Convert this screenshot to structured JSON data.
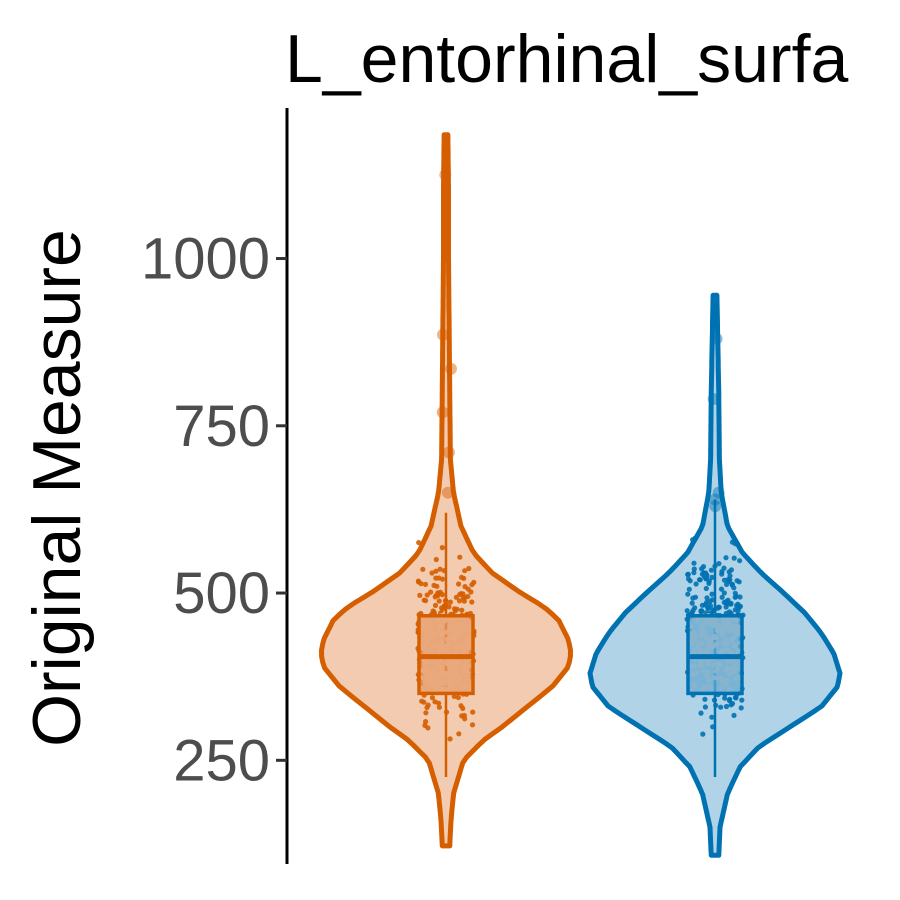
{
  "chart_data": {
    "type": "violin",
    "title": "L_entorhinal_surfa",
    "xlabel": "",
    "ylabel": "Original Measure",
    "ylim": [
      95,
      1225
    ],
    "yticks": [
      250,
      500,
      750,
      1000
    ],
    "grid": false,
    "legend": "none",
    "series": [
      {
        "color": "#D55E00",
        "fill": "#F2CBB0",
        "box_fill": "#E59A66",
        "min": 122,
        "max": 1185,
        "q1": 350,
        "median": 405,
        "q3": 466,
        "whisker_low": 225,
        "whisker_high": 620,
        "density": [
          [
            122,
            0.03
          ],
          [
            160,
            0.04
          ],
          [
            200,
            0.06
          ],
          [
            250,
            0.14
          ],
          [
            280,
            0.3
          ],
          [
            300,
            0.45
          ],
          [
            330,
            0.65
          ],
          [
            360,
            0.85
          ],
          [
            390,
            0.98
          ],
          [
            410,
            1.0
          ],
          [
            430,
            0.98
          ],
          [
            460,
            0.9
          ],
          [
            480,
            0.78
          ],
          [
            500,
            0.6
          ],
          [
            530,
            0.37
          ],
          [
            560,
            0.22
          ],
          [
            600,
            0.12
          ],
          [
            650,
            0.06
          ],
          [
            700,
            0.035
          ],
          [
            800,
            0.03
          ],
          [
            900,
            0.025
          ],
          [
            1000,
            0.02
          ],
          [
            1100,
            0.02
          ],
          [
            1185,
            0.015
          ]
        ],
        "outliers": [
          1125,
          886,
          835,
          770,
          710,
          650
        ]
      },
      {
        "color": "#0072B2",
        "fill": "#B0D3E8",
        "box_fill": "#66A8D0",
        "min": 108,
        "max": 945,
        "q1": 350,
        "median": 405,
        "q3": 466,
        "whisker_low": 225,
        "whisker_high": 640,
        "density": [
          [
            108,
            0.03
          ],
          [
            150,
            0.04
          ],
          [
            200,
            0.1
          ],
          [
            240,
            0.2
          ],
          [
            270,
            0.35
          ],
          [
            300,
            0.6
          ],
          [
            330,
            0.85
          ],
          [
            360,
            0.98
          ],
          [
            380,
            1.0
          ],
          [
            410,
            0.95
          ],
          [
            440,
            0.85
          ],
          [
            470,
            0.72
          ],
          [
            500,
            0.55
          ],
          [
            530,
            0.37
          ],
          [
            560,
            0.22
          ],
          [
            600,
            0.1
          ],
          [
            650,
            0.05
          ],
          [
            700,
            0.035
          ],
          [
            800,
            0.03
          ],
          [
            900,
            0.02
          ],
          [
            945,
            0.015
          ]
        ],
        "outliers": [
          880,
          790,
          650,
          640,
          630
        ]
      }
    ]
  }
}
